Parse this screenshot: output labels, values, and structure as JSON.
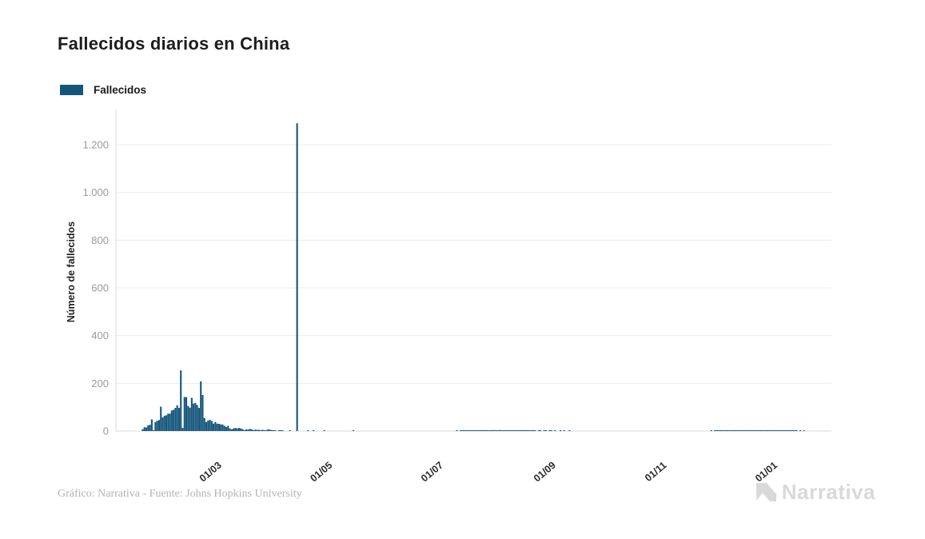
{
  "page": {
    "title": "Fallecidos diarios en China"
  },
  "legend": {
    "label": "Fallecidos",
    "swatch_color": "#14567b"
  },
  "footer": {
    "credit": "Gráfico: Narrativa - Fuente: Johns Hopkins University"
  },
  "branding": {
    "logo_text": "Narrativa",
    "logo_color": "#d9d9d9",
    "logo_icon": "narrativa-n-mark"
  },
  "chart_data": {
    "type": "bar",
    "title": "Fallecidos diarios en China",
    "series_name": "Fallecidos",
    "xlabel": "",
    "ylabel": "Número de fallecidos",
    "bar_color": "#14567b",
    "grid": true,
    "legend_position": "top-left",
    "ylim": [
      0,
      1348
    ],
    "y_ticks": [
      {
        "value": 0,
        "label": "0"
      },
      {
        "value": 200,
        "label": "200"
      },
      {
        "value": 400,
        "label": "400"
      },
      {
        "value": 600,
        "label": "600"
      },
      {
        "value": 800,
        "label": "800"
      },
      {
        "value": 1000,
        "label": "1.000"
      },
      {
        "value": 1200,
        "label": "1.200"
      }
    ],
    "x_ticks": [
      {
        "day_index": 38,
        "label": "01/03"
      },
      {
        "day_index": 99,
        "label": "01/05"
      },
      {
        "day_index": 160,
        "label": "01/07"
      },
      {
        "day_index": 222,
        "label": "01/09"
      },
      {
        "day_index": 283,
        "label": "01/11"
      },
      {
        "day_index": 344,
        "label": "01/01"
      }
    ],
    "start_date": "2020-01-23",
    "max_value": 1290,
    "values": [
      8,
      16,
      15,
      24,
      26,
      49,
      2,
      38,
      43,
      46,
      102,
      57,
      64,
      66,
      73,
      73,
      86,
      89,
      97,
      108,
      97,
      254,
      13,
      143,
      142,
      105,
      98,
      139,
      115,
      118,
      109,
      97,
      208,
      151,
      55,
      38,
      44,
      47,
      42,
      31,
      38,
      31,
      30,
      28,
      27,
      22,
      17,
      22,
      11,
      7,
      11,
      13,
      11,
      13,
      11,
      8,
      3,
      7,
      6,
      9,
      7,
      4,
      6,
      5,
      5,
      3,
      5,
      2,
      1,
      7,
      6,
      4,
      3,
      1,
      0,
      2,
      2,
      1,
      0,
      0,
      0,
      1,
      0,
      0,
      0,
      1290,
      0,
      0,
      0,
      0,
      0,
      1,
      0,
      0,
      1,
      0,
      0,
      0,
      0,
      0,
      1,
      0,
      0,
      0,
      0,
      0,
      0,
      0,
      0,
      0,
      0,
      0,
      0,
      0,
      0,
      0,
      1,
      0,
      0,
      0,
      0,
      0,
      0,
      0,
      0,
      0,
      0,
      0,
      0,
      0,
      0,
      0,
      0,
      0,
      0,
      0,
      0,
      0,
      0,
      0,
      0,
      0,
      0,
      0,
      0,
      0,
      0,
      0,
      0,
      0,
      0,
      0,
      0,
      0,
      0,
      0,
      0,
      0,
      0,
      0,
      0,
      0,
      0,
      0,
      0,
      0,
      0,
      0,
      0,
      0,
      0,
      0,
      0,
      1,
      0,
      1,
      1,
      2,
      1,
      2,
      2,
      2,
      3,
      2,
      2,
      3,
      2,
      2,
      3,
      2,
      3,
      3,
      2,
      4,
      3,
      2,
      3,
      4,
      3,
      2,
      3,
      2,
      3,
      2,
      1,
      2,
      1,
      2,
      1,
      1,
      2,
      1,
      1,
      2,
      1,
      1,
      1,
      0,
      1,
      1,
      0,
      1,
      1,
      0,
      1,
      1,
      0,
      1,
      0,
      0,
      1,
      0,
      1,
      0,
      0,
      1,
      0,
      0,
      0,
      0,
      0,
      0,
      0,
      0,
      0,
      0,
      0,
      0,
      0,
      0,
      0,
      0,
      0,
      0,
      0,
      0,
      0,
      0,
      0,
      0,
      0,
      0,
      0,
      0,
      0,
      0,
      0,
      0,
      0,
      0,
      0,
      0,
      0,
      0,
      0,
      0,
      0,
      0,
      0,
      0,
      0,
      0,
      0,
      0,
      0,
      0,
      0,
      0,
      0,
      0,
      0,
      0,
      0,
      0,
      0,
      0,
      0,
      0,
      0,
      0,
      0,
      0,
      0,
      0,
      0,
      0,
      0,
      0,
      0,
      0,
      0,
      0,
      0,
      1,
      0,
      1,
      2,
      1,
      2,
      1,
      2,
      3,
      2,
      3,
      2,
      2,
      3,
      2,
      3,
      2,
      2,
      3,
      2,
      2,
      3,
      2,
      3,
      2,
      2,
      3,
      2,
      3,
      2,
      2,
      2,
      3,
      2,
      2,
      3,
      2,
      2,
      1,
      2,
      1,
      2,
      1,
      1,
      2,
      1,
      1,
      1,
      0,
      1,
      0,
      1,
      0,
      0,
      0,
      0,
      0,
      0,
      0,
      0,
      0,
      0
    ]
  }
}
